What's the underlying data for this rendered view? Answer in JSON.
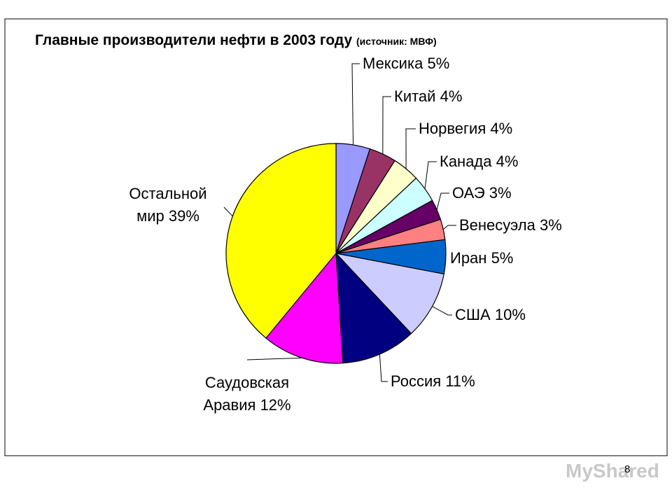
{
  "chart_data": {
    "type": "pie",
    "title": "Главные производители нефти в 2003 году",
    "subtitle": "(источник: МВФ)",
    "categories": [
      "Мексика",
      "Китай",
      "Норвегия",
      "Канада",
      "ОАЭ",
      "Венесуэла",
      "Иран",
      "США",
      "Россия",
      "Саудовская Аравия",
      "Остальной мир"
    ],
    "values": [
      5,
      4,
      4,
      4,
      3,
      3,
      5,
      10,
      11,
      12,
      39
    ],
    "value_labels": [
      "5%",
      "4%",
      "4%",
      "4%",
      "3%",
      "3%",
      "5%",
      "10%",
      "11%",
      "12%",
      "39%"
    ],
    "colors": [
      "#9999ff",
      "#993366",
      "#ffffcc",
      "#ccffff",
      "#660066",
      "#ff8080",
      "#0066cc",
      "#ccccff",
      "#000080",
      "#ff00ff",
      "#ffff00"
    ]
  },
  "page_number": "8",
  "watermark": "MyShared"
}
